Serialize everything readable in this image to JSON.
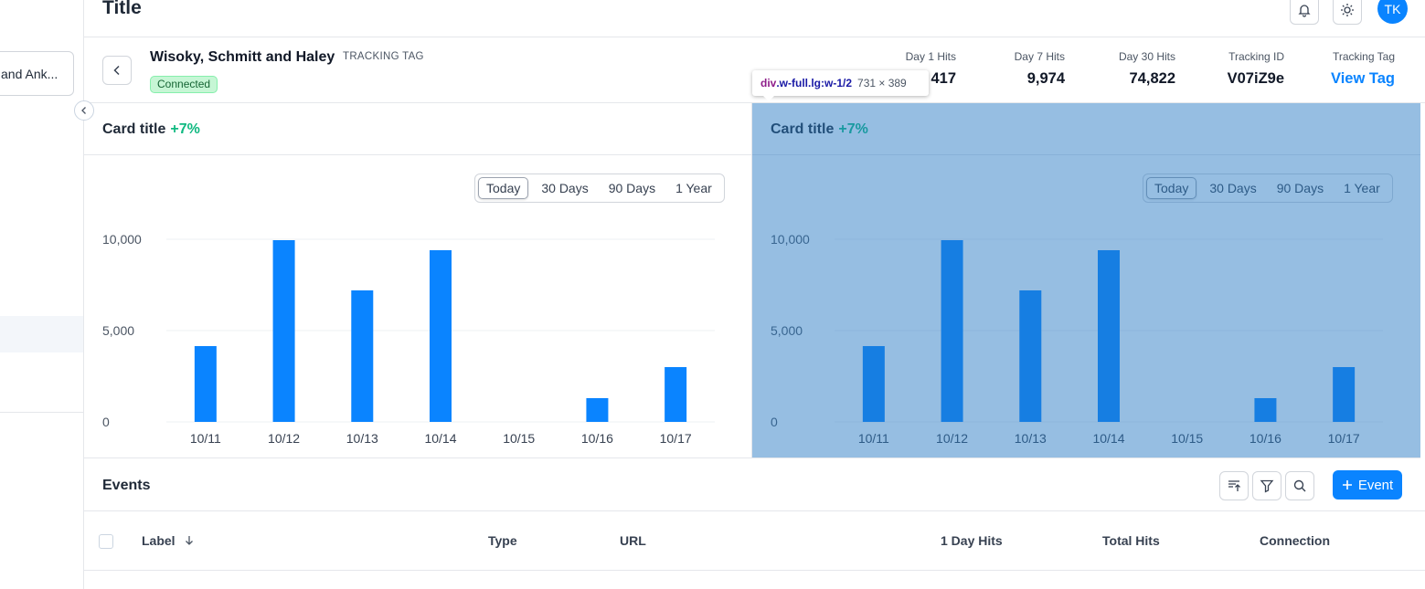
{
  "sidebar": {
    "org_label": "and Ank..."
  },
  "topbar": {
    "title": "Title",
    "avatar_initials": "TK"
  },
  "header": {
    "company_name": "Wisoky, Schmitt and Haley",
    "tag_label": "TRACKING TAG",
    "status": "Connected",
    "stats": [
      {
        "label": "Day 1 Hits",
        "value": "417"
      },
      {
        "label": "Day 7 Hits",
        "value": "9,974"
      },
      {
        "label": "Day 30 Hits",
        "value": "74,822"
      },
      {
        "label": "Tracking ID",
        "value": "V07iZ9e"
      },
      {
        "label": "Tracking Tag",
        "value": "View Tag"
      }
    ]
  },
  "tooltip": {
    "tag": "div",
    "class": ".w-full.lg:w-1/2",
    "size": "731 × 389"
  },
  "cards": [
    {
      "title": "Card title",
      "delta": "+7%"
    },
    {
      "title": "Card title",
      "delta": "+7%"
    }
  ],
  "ranges": [
    "Today",
    "30 Days",
    "90 Days",
    "1 Year"
  ],
  "active_range": "Today",
  "colors": {
    "accent": "#0a84ff",
    "positive": "#10b981",
    "highlight_overlay": "rgba(36,120,195,0.48)"
  },
  "chart_data": [
    {
      "type": "bar",
      "title": "",
      "categories": [
        "10/11",
        "10/12",
        "10/13",
        "10/14",
        "10/15",
        "10/16",
        "10/17"
      ],
      "values": [
        4150,
        9950,
        7200,
        9400,
        0,
        1300,
        3000
      ],
      "y_ticks": [
        "0",
        "5,000",
        "10,000"
      ],
      "ylim": [
        0,
        10000
      ],
      "grid": true
    },
    {
      "type": "bar",
      "title": "",
      "categories": [
        "10/11",
        "10/12",
        "10/13",
        "10/14",
        "10/15",
        "10/16",
        "10/17"
      ],
      "values": [
        4150,
        9950,
        7200,
        9400,
        0,
        1300,
        3000
      ],
      "y_ticks": [
        "0",
        "5,000",
        "10,000"
      ],
      "ylim": [
        0,
        10000
      ],
      "grid": true
    }
  ],
  "events": {
    "title": "Events",
    "add_label": "Event",
    "columns": [
      "Label",
      "Type",
      "URL",
      "1 Day Hits",
      "Total Hits",
      "Connection"
    ]
  }
}
